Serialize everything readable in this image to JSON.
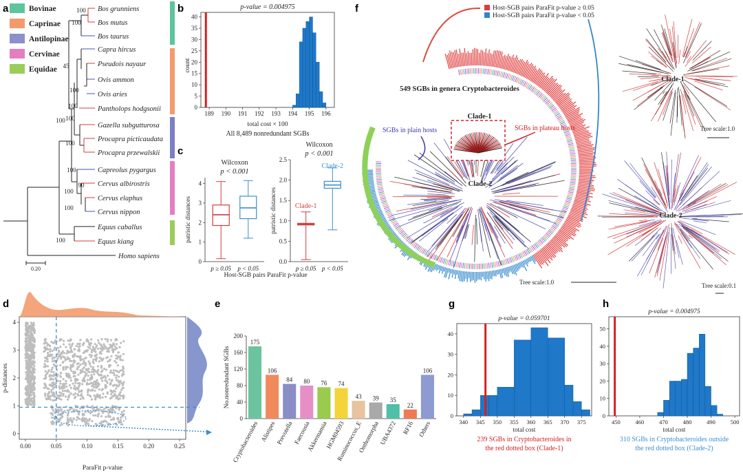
{
  "panels": {
    "a": "a",
    "b": "b",
    "c": "c",
    "d": "d",
    "e": "e",
    "f": "f",
    "g": "g",
    "h": "h"
  },
  "colors": {
    "red": "#d22d2d",
    "blue": "#2f7fc9",
    "purple": "#7b7fc4",
    "green": "#9ccc5a",
    "teal": "#5cc59b",
    "orange": "#f39b6d",
    "pink": "#e47fbf"
  },
  "panel_a": {
    "legend": [
      {
        "label": "Bovinae",
        "color": "#5cc59b"
      },
      {
        "label": "Caprinae",
        "color": "#f39b6d"
      },
      {
        "label": "Antilopinae",
        "color": "#8c8fcc"
      },
      {
        "label": "Cervinae",
        "color": "#e47fbf"
      },
      {
        "label": "Equidae",
        "color": "#9ccc5a"
      }
    ],
    "taxa": [
      "Bos grunniens",
      "Bos mutus",
      "Bos taurus",
      "Capra hircus",
      "Pseudois nayaur",
      "Ovis ammon",
      "Ovis aries",
      "Pantholops hodgsonii",
      "Gazella subgutturosa",
      "Procapra picticaudata",
      "Procapra przewalskii",
      "Capreolus pygargus",
      "Cervus albirostris",
      "Cervus elaphus",
      "Cervus nippon",
      "Equus caballus",
      "Equus kiang",
      "Homo sapiens"
    ],
    "bootstrap": [
      "100",
      "100",
      "45",
      "100",
      "100",
      "100",
      "100",
      "100",
      "100",
      "90",
      "100",
      "100",
      "100"
    ],
    "scale": "0.20"
  },
  "chart_data": [
    {
      "id": "b",
      "type": "bar",
      "title": "p-value = 0.004975",
      "xlabel": "total  cost × 100",
      "subtitle": "All 8,489 nonredundant SGBs",
      "ylabel": "count",
      "xlim": [
        188.5,
        196.5
      ],
      "ylim": [
        0,
        42
      ],
      "xticks": [
        189,
        190,
        191,
        192,
        193,
        194,
        195,
        196
      ],
      "yticks": [
        0,
        5,
        10,
        15,
        20,
        25,
        30,
        35,
        40
      ],
      "bins": [
        194.0,
        194.2,
        194.4,
        194.6,
        194.8,
        195.0,
        195.2,
        195.4,
        195.6,
        195.8
      ],
      "values": [
        1,
        6,
        29,
        35,
        38,
        40,
        33,
        20,
        7,
        2
      ],
      "observed": 188.8
    },
    {
      "id": "c1",
      "type": "box",
      "title": "Wilcoxon",
      "stat": "p < 0.001",
      "ylabel": "patristic distances",
      "ylim": [
        0,
        4.3
      ],
      "yticks": [
        0,
        1,
        2,
        3,
        4
      ],
      "categories": [
        "p ≥ 0.05",
        "p < 0.05"
      ],
      "series": [
        {
          "min": 0.15,
          "q1": 1.85,
          "median": 2.4,
          "q3": 2.9,
          "max": 4.1
        },
        {
          "min": 1.2,
          "q1": 2.2,
          "median": 2.75,
          "q3": 3.35,
          "max": 4.15
        }
      ],
      "xlabel": "Host-SGB pairs ParaFit p-value"
    },
    {
      "id": "c2",
      "type": "box",
      "title": "Wilcoxon",
      "stat": "p < 0.001",
      "ylabel": "patristic distances",
      "ylim": [
        0,
        2.5
      ],
      "yticks": [
        0.0,
        0.5,
        1.0,
        1.5,
        2.0,
        2.5
      ],
      "categories": [
        "p ≥ 0.05",
        "p < 0.05"
      ],
      "series": [
        {
          "name": "Clade-1",
          "min": 0.05,
          "q1": 0.9,
          "median": 0.92,
          "q3": 0.94,
          "max": 1.22
        },
        {
          "name": "Clade-2",
          "min": 0.78,
          "q1": 1.8,
          "median": 1.88,
          "q3": 1.97,
          "max": 2.3
        }
      ]
    },
    {
      "id": "d",
      "type": "scatter",
      "xlabel": "ParaFit p-value",
      "ylabel": "p-distances",
      "xlim": [
        -0.01,
        0.26
      ],
      "ylim": [
        -0.2,
        4.2
      ],
      "xticks": [
        0.0,
        0.05,
        0.1,
        0.15,
        0.2,
        0.25
      ],
      "yticks": [
        0,
        1,
        2,
        3,
        4
      ],
      "vline": 0.05,
      "hline": 0.95
    },
    {
      "id": "e",
      "type": "bar",
      "ylabel": "No.nonredundant SGBs",
      "ylim": [
        0,
        200
      ],
      "yticks": [
        0,
        40,
        80,
        120,
        160,
        200
      ],
      "categories": [
        "Cryptobacteroides",
        "Alistipes",
        "Prevotella",
        "Faecousia",
        "Akkermansia",
        "HGM04593",
        "Ruminococcus_E",
        "Onthomorpha",
        "UBA4372",
        "RF16",
        "Others"
      ],
      "values": [
        175,
        106,
        84,
        80,
        76,
        74,
        43,
        39,
        35,
        22,
        106
      ],
      "colors": [
        "#6cc3a0",
        "#f08a5d",
        "#8a8dc6",
        "#e58fc6",
        "#9acb4f",
        "#f4d33b",
        "#e8c39e",
        "#a9a9a9",
        "#4fbfa8",
        "#f07a54",
        "#8e9bd1"
      ]
    },
    {
      "id": "g",
      "type": "bar",
      "title": "p-value = 0.059701",
      "xlabel": "total cost",
      "note": "239 SGBs in Cryptobacteroides in the red dotted box (Clade-1)",
      "xlim": [
        338,
        378
      ],
      "ylim": [
        0,
        45
      ],
      "xticks": [
        340,
        345,
        350,
        355,
        360,
        365,
        370,
        375
      ],
      "yticks": [
        0,
        10,
        20,
        30,
        40
      ],
      "bins": [
        340,
        342.5,
        345,
        347.5,
        350,
        355,
        360,
        365,
        370,
        372.5,
        375
      ],
      "values": [
        1,
        3,
        10,
        10,
        14,
        37,
        43,
        38,
        15,
        7,
        3
      ],
      "observed": 346.5
    },
    {
      "id": "h",
      "type": "bar",
      "title": "p-value = 0.004975",
      "xlabel": "total cost",
      "note": "310 SGBs in Cryptobacteroides outside the red dotted box (Clade-2)",
      "xlim": [
        447,
        502
      ],
      "ylim": [
        0,
        57
      ],
      "xticks": [
        450,
        460,
        470,
        480,
        490,
        500
      ],
      "yticks": [
        0,
        10,
        20,
        30,
        40,
        50
      ],
      "bins": [
        467.5,
        470,
        472.5,
        475,
        477.5,
        480,
        482.5,
        485,
        487.5,
        490,
        492.5
      ],
      "values": [
        2,
        9,
        20,
        20,
        21,
        36,
        39,
        47,
        17,
        6,
        1
      ],
      "observed": 449.5
    }
  ],
  "panel_f": {
    "legend_red": "Host-SGB pairs ParaFit p-value ≥ 0.05",
    "legend_blue": "Host-SGB pairs ParaFit p-value < 0.05",
    "center_title": "549 SGBs in  genera Cryptobacteroides",
    "clade1": "Clade-1",
    "clade2": "Clade-2",
    "plain": "SGBs in plain hosts",
    "plateau": "SGBs in plateau hosts",
    "scale_main": "Tree scale:1.0",
    "scale_c1": "Tree scale:1.0",
    "scale_c2": "Tree scale:0.1"
  }
}
